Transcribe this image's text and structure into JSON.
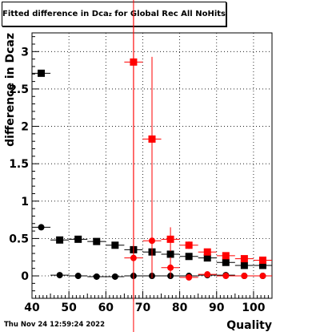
{
  "title_main": "Fitted difference in Dca",
  "title_sub": "z",
  "title_tail": " for Global Rec All NoHits",
  "footer_date": "Thu Nov 24 12:59:24 2022",
  "chart_data": {
    "type": "scatter",
    "title": "Fitted difference in Dcaz for Global Rec All NoHits",
    "xlabel": "Quality",
    "ylabel": "difference in Dcaz",
    "xlim": [
      40,
      105
    ],
    "ylim": [
      -0.3,
      3.25
    ],
    "xticks": [
      40,
      50,
      60,
      70,
      80,
      90,
      100
    ],
    "yticks": [
      0,
      0.5,
      1,
      1.5,
      2,
      2.5,
      3
    ],
    "grid": true,
    "series": [
      {
        "color": "#000000",
        "marker": "square",
        "x": [
          42.5,
          47.5,
          52.5,
          57.5,
          62.5,
          67.5,
          72.5,
          77.5,
          82.5,
          87.5,
          92.5,
          97.5,
          102.5
        ],
        "y": [
          2.71,
          0.48,
          0.49,
          0.46,
          0.41,
          0.35,
          0.32,
          0.29,
          0.26,
          0.24,
          0.18,
          0.14,
          0.14
        ],
        "yerr": [
          0,
          0,
          0,
          0,
          0,
          0,
          0,
          0,
          0,
          0,
          0,
          0,
          0
        ]
      },
      {
        "color": "#000000",
        "marker": "circle",
        "x": [
          42.5,
          47.5,
          52.5,
          57.5,
          62.5,
          67.5,
          72.5,
          77.5,
          82.5,
          87.5,
          92.5,
          97.5,
          102.5
        ],
        "y": [
          0.65,
          0.01,
          0.0,
          -0.01,
          -0.01,
          0.0,
          0.0,
          0.0,
          0.0,
          0.01,
          0.01,
          0.0,
          0.0
        ],
        "yerr": [
          0,
          0,
          0,
          0,
          0,
          0,
          0,
          0,
          0,
          0,
          0,
          0,
          0
        ]
      },
      {
        "color": "#ff0000",
        "marker": "square",
        "x": [
          67.5,
          72.5,
          77.5,
          82.5,
          87.5,
          92.5,
          97.5,
          102.5
        ],
        "y": [
          2.86,
          1.83,
          0.49,
          0.41,
          0.32,
          0.27,
          0.23,
          0.21
        ],
        "yerr": [
          3.2,
          1.1,
          0.16,
          0.05,
          0.04,
          0.03,
          0.02,
          0.02
        ]
      },
      {
        "color": "#ff0000",
        "marker": "circle",
        "x": [
          67.5,
          72.5,
          77.5,
          82.5,
          87.5,
          92.5,
          97.5,
          102.5
        ],
        "y": [
          0.24,
          0.47,
          0.11,
          -0.02,
          0.02,
          0.0,
          0.0,
          0.0
        ],
        "yerr": [
          3.3,
          0.5,
          0.14,
          0.04,
          0.03,
          0.02,
          0.02,
          0.02
        ]
      }
    ]
  }
}
